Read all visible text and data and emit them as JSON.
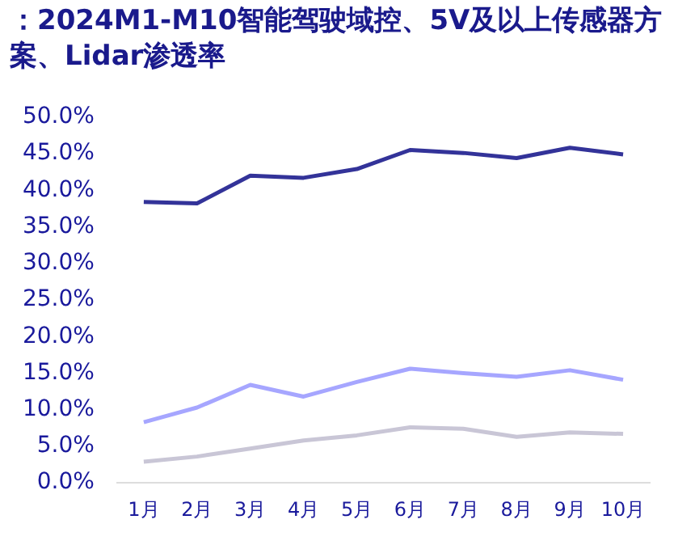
{
  "chart_data": {
    "type": "line",
    "title": "：2024M1-M10智能驾驶域控、5V及以上传感器方案、Lidar渗透率",
    "categories": [
      "1月",
      "2月",
      "3月",
      "4月",
      "5月",
      "6月",
      "7月",
      "8月",
      "9月",
      "10月"
    ],
    "series": [
      {
        "color": "#333399",
        "values": [
          38.4,
          38.2,
          42.0,
          41.7,
          42.9,
          45.5,
          45.1,
          44.4,
          45.8,
          44.9
        ]
      },
      {
        "color": "#a6a6ff",
        "values": [
          8.3,
          10.3,
          13.4,
          11.8,
          13.8,
          15.6,
          15.0,
          14.5,
          15.4,
          14.1
        ]
      },
      {
        "color": "#c9c6d6",
        "values": [
          2.9,
          3.6,
          4.7,
          5.8,
          6.5,
          7.6,
          7.4,
          6.3,
          6.9,
          6.7
        ]
      }
    ],
    "ylim": [
      0,
      50
    ],
    "yticks": [
      {
        "value": 0,
        "label": "0.0%"
      },
      {
        "value": 5,
        "label": "5.0%"
      },
      {
        "value": 10,
        "label": "10.0%"
      },
      {
        "value": 15,
        "label": "15.0%"
      },
      {
        "value": 20,
        "label": "20.0%"
      },
      {
        "value": 25,
        "label": "25.0%"
      },
      {
        "value": 30,
        "label": "30.0%"
      },
      {
        "value": 35,
        "label": "35.0%"
      },
      {
        "value": 40,
        "label": "40.0%"
      },
      {
        "value": 45,
        "label": "45.0%"
      },
      {
        "value": 50,
        "label": "50.0%"
      }
    ],
    "grid": false,
    "marker": "none"
  }
}
